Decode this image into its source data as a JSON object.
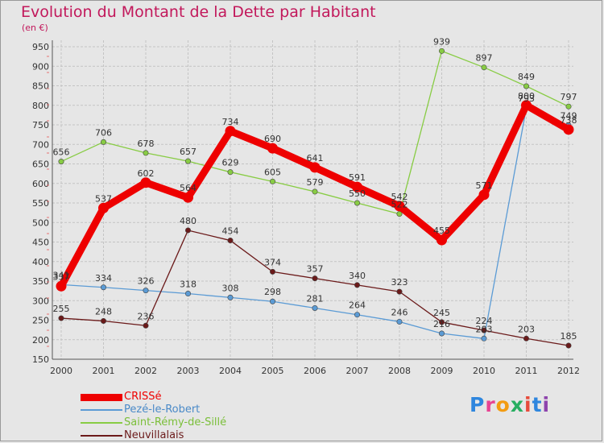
{
  "title": "Evolution du Montant de la Dette par Habitant",
  "subtitle": "(en €)",
  "logo": {
    "text": "Proxiti",
    "colors": [
      "#2e86de",
      "#e84393",
      "#f39c12",
      "#27ae60",
      "#e74c3c",
      "#2e86de",
      "#8e44ad"
    ]
  },
  "chart_data": {
    "type": "line",
    "title": "Evolution du Montant de la Dette par Habitant",
    "ylabel": "(en €)",
    "xlabel": "",
    "x": [
      "2000",
      "2001",
      "2002",
      "2003",
      "2004",
      "2005",
      "2006",
      "2007",
      "2008",
      "2009",
      "2010",
      "2011",
      "2012"
    ],
    "ylim": [
      150,
      950
    ],
    "yticks": [
      150,
      200,
      250,
      300,
      350,
      400,
      450,
      500,
      550,
      600,
      650,
      700,
      750,
      800,
      850,
      900,
      950
    ],
    "grid": true,
    "legend_position": "bottom-left",
    "series": [
      {
        "name": "CRISSé",
        "color": "#ee0000",
        "values": [
          337,
          537,
          602,
          564,
          734,
          690,
          641,
          591,
          542,
          455,
          571,
          800,
          738
        ],
        "labels": [
          "337",
          "537",
          "602",
          "564",
          "734",
          "690",
          "641",
          "591",
          "542",
          "455",
          "571",
          "800",
          "738"
        ]
      },
      {
        "name": "Pezé-le-Robert",
        "color": "#5b9bd5",
        "values": [
          341,
          334,
          326,
          318,
          308,
          298,
          281,
          264,
          246,
          216,
          203,
          793,
          749
        ],
        "labels": [
          "341",
          "334",
          "326",
          "318",
          "308",
          "298",
          "281",
          "264",
          "246",
          "216",
          "203",
          "793",
          "749"
        ]
      },
      {
        "name": "Saint-Rémy-de-Sillé",
        "color": "#88cc44",
        "values": [
          656,
          706,
          678,
          657,
          629,
          605,
          579,
          550,
          522,
          939,
          897,
          849,
          797
        ],
        "labels": [
          "656",
          "706",
          "678",
          "657",
          "629",
          "605",
          "579",
          "550",
          "522",
          "939",
          "897",
          "849",
          "797"
        ]
      },
      {
        "name": "Neuvillalais",
        "color": "#6b1a1a",
        "values": [
          255,
          248,
          236,
          480,
          454,
          374,
          357,
          340,
          323,
          245,
          224,
          203,
          185
        ],
        "labels": [
          "255",
          "248",
          "236",
          "480",
          "454",
          "374",
          "357",
          "340",
          "323",
          "245",
          "224",
          "203",
          "185"
        ]
      }
    ]
  }
}
